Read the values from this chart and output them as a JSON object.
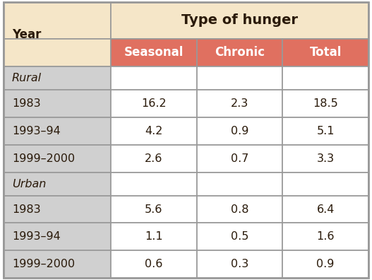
{
  "title": "Type of hunger",
  "header_bg_color": "#f5e6c8",
  "subheader_bg_color": "#e07060",
  "data_bg_color": "#d0d0d0",
  "white_col_bg": "#ffffff",
  "year_label": "Year",
  "columns": [
    "Seasonal",
    "Chronic",
    "Total"
  ],
  "sections": [
    {
      "label": "Rural",
      "rows": [
        {
          "year": "1983",
          "values": [
            "16.2",
            "2.3",
            "18.5"
          ]
        },
        {
          "year": "1993–94",
          "values": [
            "4.2",
            "0.9",
            "5.1"
          ]
        },
        {
          "year": "1999–2000",
          "values": [
            "2.6",
            "0.7",
            "3.3"
          ]
        }
      ]
    },
    {
      "label": "Urban",
      "rows": [
        {
          "year": "1983",
          "values": [
            "5.6",
            "0.8",
            "6.4"
          ]
        },
        {
          "year": "1993–94",
          "values": [
            "1.1",
            "0.5",
            "1.6"
          ]
        },
        {
          "year": "1999–2000",
          "values": [
            "0.6",
            "0.3",
            "0.9"
          ]
        }
      ]
    }
  ],
  "border_color": "#999999",
  "title_fontsize": 14,
  "header_fontsize": 12,
  "cell_fontsize": 11.5,
  "year_label_fontsize": 12,
  "section_label_fontsize": 11.5,
  "fig_w": 5.27,
  "fig_h": 3.96,
  "dpi": 100
}
